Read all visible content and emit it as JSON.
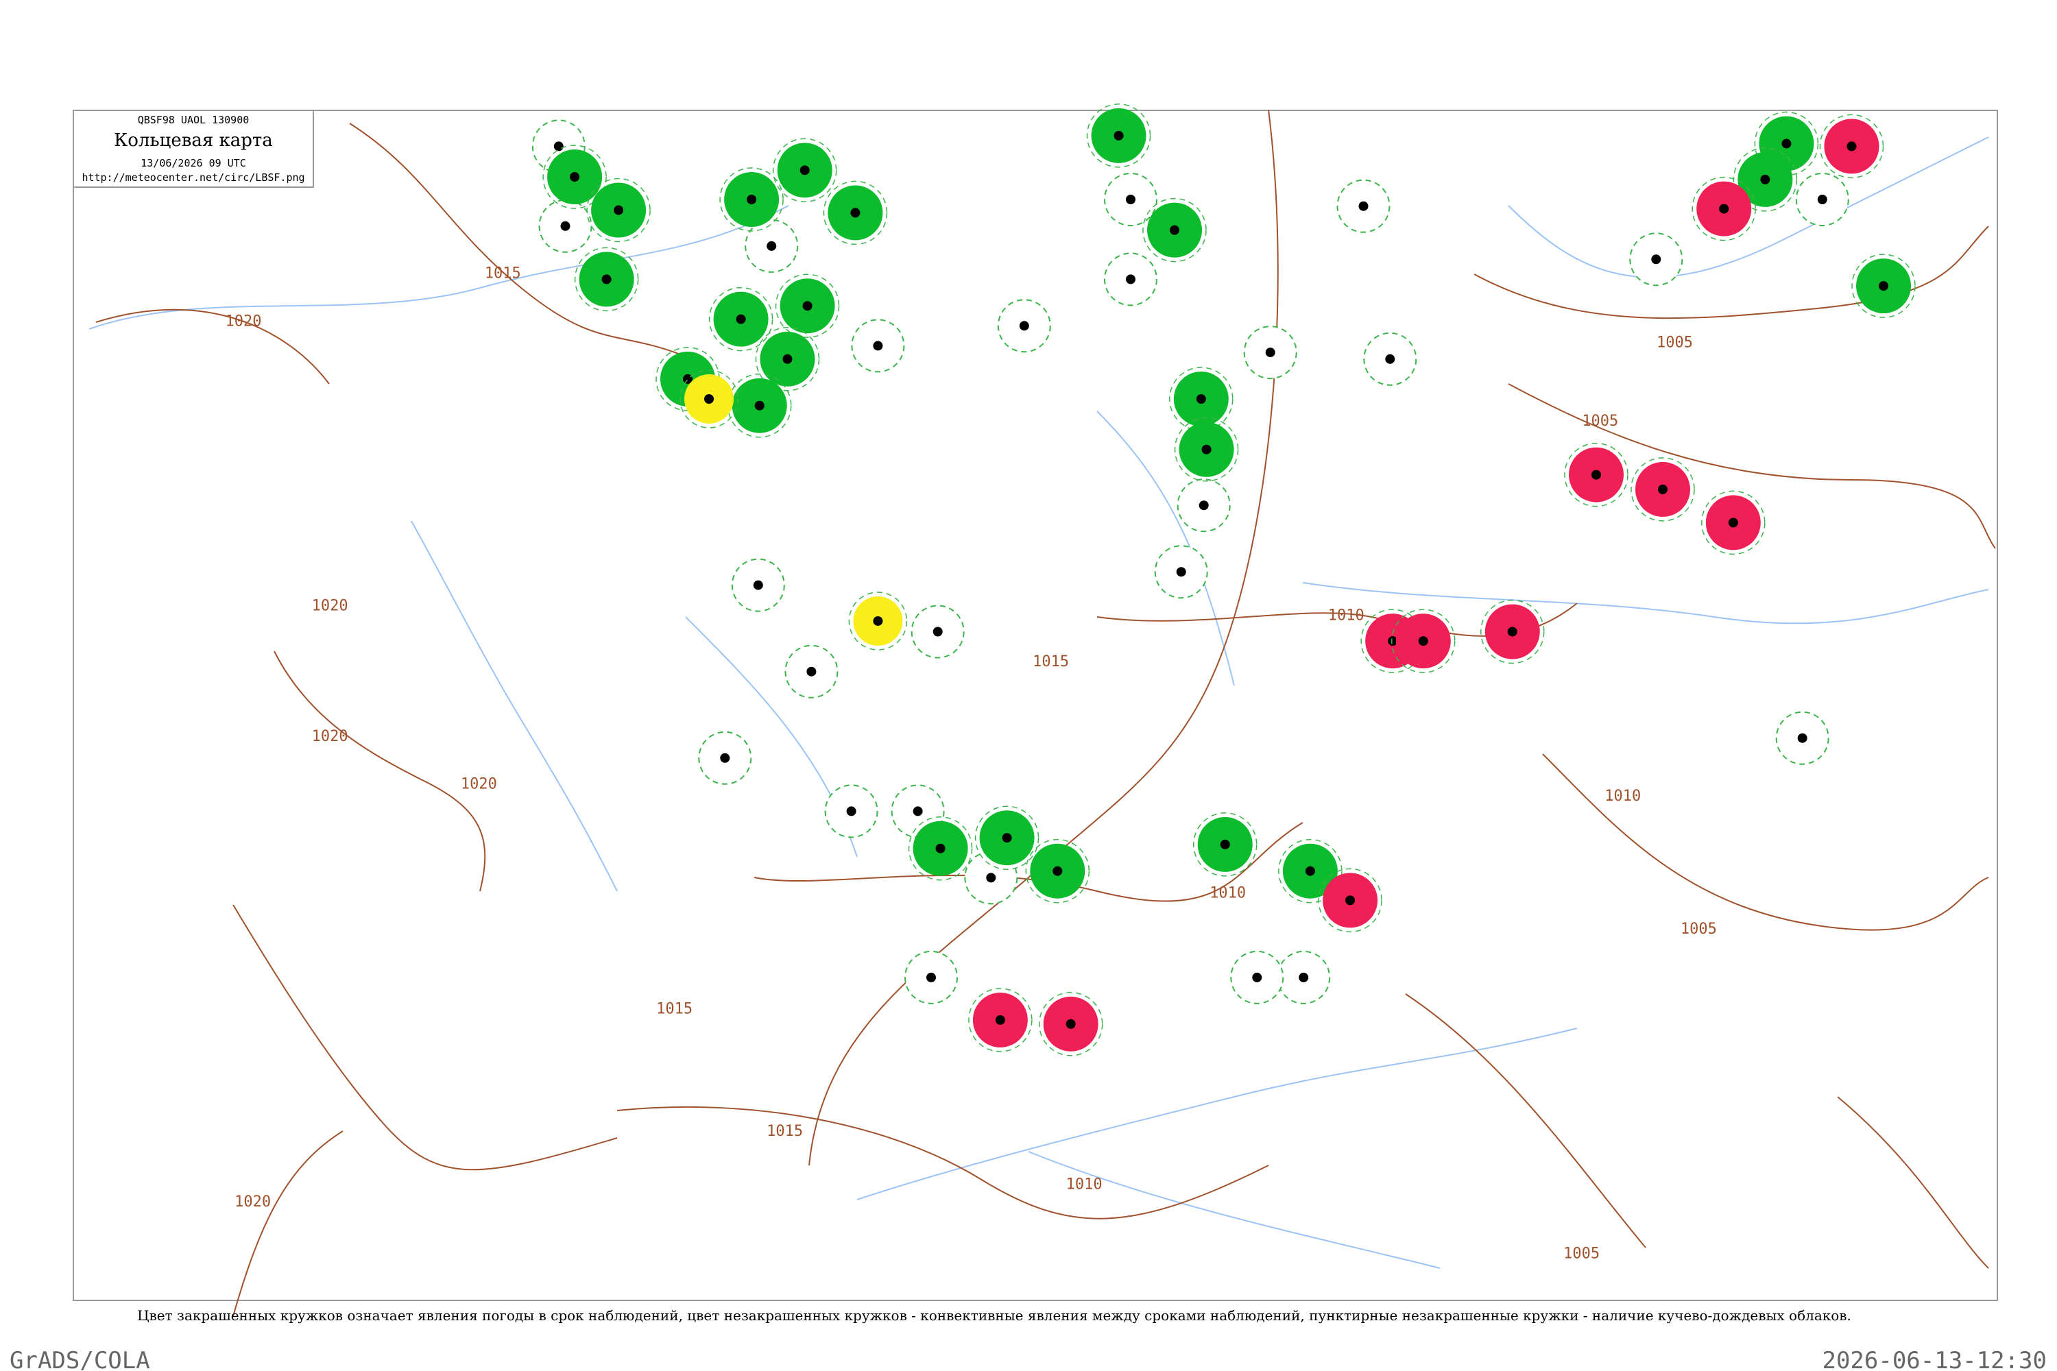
{
  "header": {
    "code": "QBSF98  UAOL  130900",
    "title": "Кольцевая карта",
    "datetime": "13/06/2026 09 UTC",
    "url": "http://meteocenter.net/circ/LBSF.png"
  },
  "isobar_labels": [
    "1015",
    "1020",
    "1020",
    "1020",
    "1020",
    "1015",
    "1015",
    "1010",
    "1020",
    "1010",
    "1010",
    "1015",
    "1005",
    "1005",
    "1010",
    "1005",
    "1005"
  ],
  "caption": "Цвет закрашенных кружков означает явления погоды в срок наблюдений, цвет незакрашенных кружков - конвективные явления между сроками наблюдений, пунктирные незакрашенные кружки - наличие кучево-дождевых облаков.",
  "footer": {
    "left": "GrADS/COLA",
    "right": "2026-06-13-12:30"
  }
}
